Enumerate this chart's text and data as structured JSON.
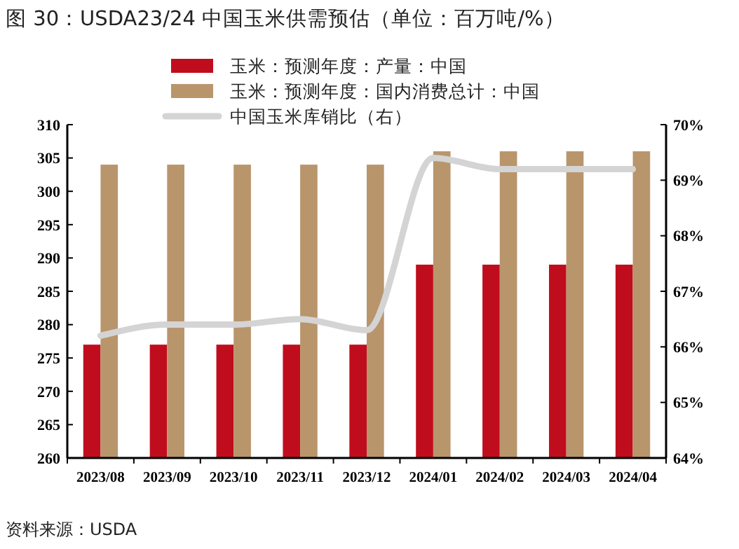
{
  "chart_data": {
    "type": "bar",
    "title": "图 30：USDA23/24 中国玉米供需预估（单位：百万吨/%）",
    "categories": [
      "2023/08",
      "2023/09",
      "2023/10",
      "2023/11",
      "2023/12",
      "2024/01",
      "2024/02",
      "2024/03",
      "2024/04"
    ],
    "series": [
      {
        "name": "玉米：预测年度：产量：中国",
        "color": "#c00d1e",
        "values": [
          277,
          277,
          277,
          277,
          277,
          289,
          289,
          289,
          289
        ]
      },
      {
        "name": "玉米：预测年度：国内消费总计：中国",
        "color": "#b9956c",
        "values": [
          304,
          304,
          304,
          304,
          304,
          306,
          306,
          306,
          306
        ]
      },
      {
        "name": "中国玉米库销比（右）",
        "type": "line",
        "axis": "y2",
        "color": "#d4d4d4",
        "values": [
          66.2,
          66.4,
          66.4,
          66.5,
          66.3,
          69.4,
          69.2,
          69.2,
          69.2
        ]
      }
    ],
    "ylim": [
      260,
      310
    ],
    "yticks": [
      260,
      265,
      270,
      275,
      280,
      285,
      290,
      295,
      300,
      305,
      310
    ],
    "y2lim": [
      64,
      70
    ],
    "y2ticks": [
      {
        "value": 64,
        "label": "64%"
      },
      {
        "value": 65,
        "label": "65%"
      },
      {
        "value": 66,
        "label": "66%"
      },
      {
        "value": 67,
        "label": "67%"
      },
      {
        "value": 68,
        "label": "68%"
      },
      {
        "value": 69,
        "label": "69%"
      },
      {
        "value": 70,
        "label": "70%"
      }
    ],
    "legend": "top left",
    "annotations": [
      "资料来源：USDA"
    ]
  }
}
